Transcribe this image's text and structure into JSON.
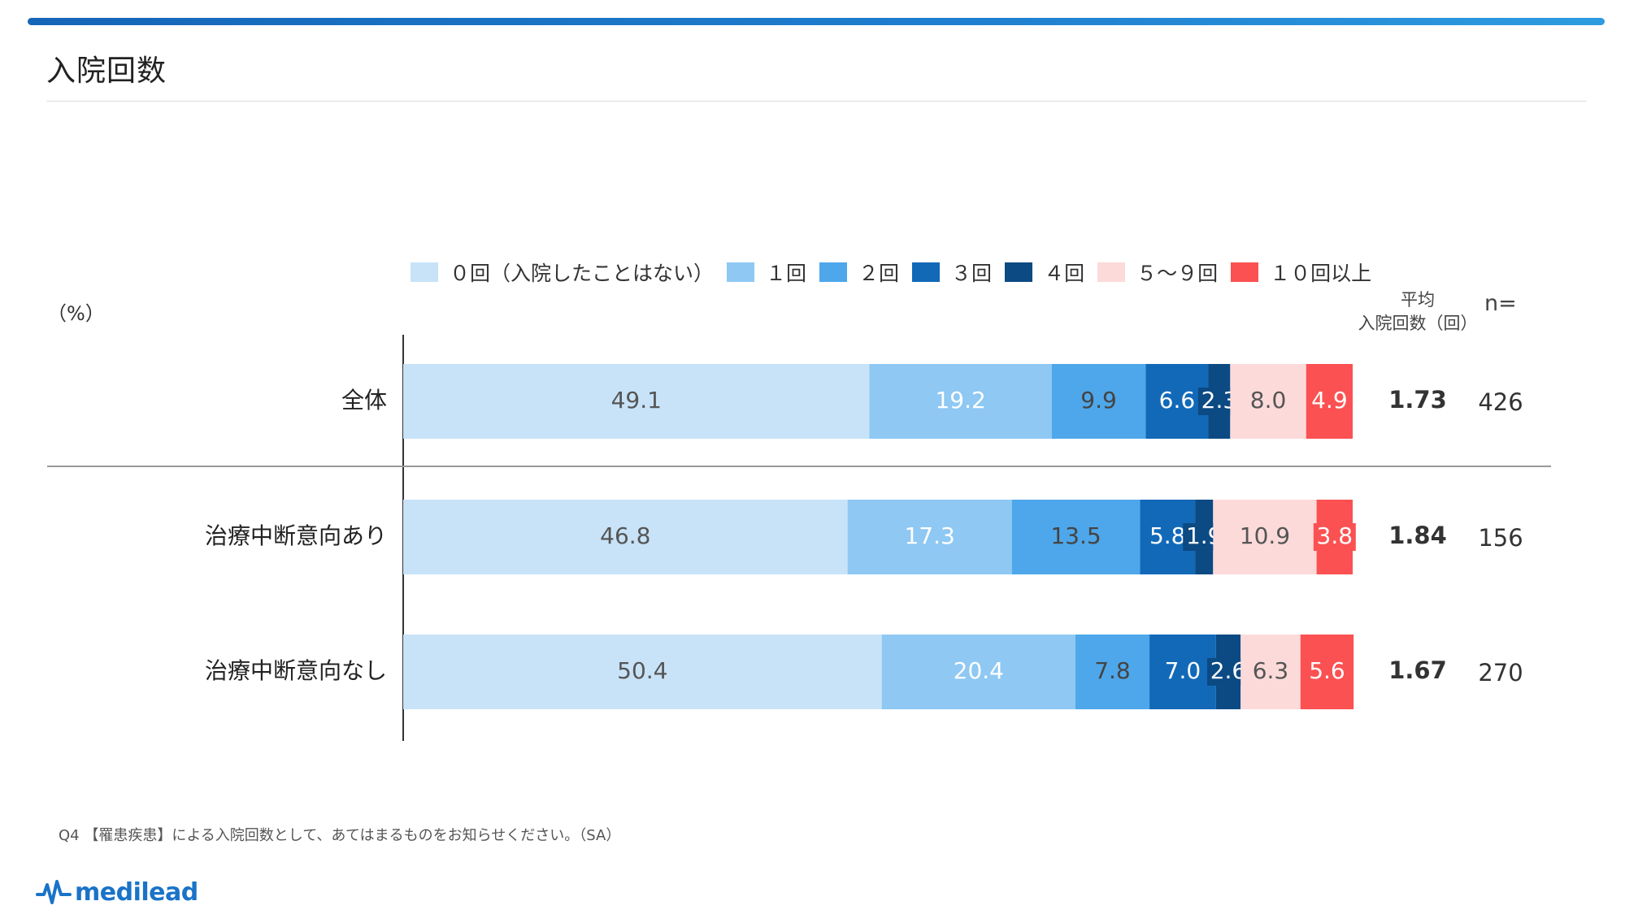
{
  "header": {
    "title": "入院回数"
  },
  "unit_label": "（%）",
  "avg_header": {
    "line1": "平均",
    "line2": "入院回数（回）"
  },
  "n_header": "n=",
  "footnote": "Q4 【罹患疾患】による入院回数として、あてはまるものをお知らせください。（SA）",
  "logo": {
    "text": "medilead",
    "icon": "pulse-line-icon"
  },
  "chart_data": {
    "type": "bar",
    "orientation": "horizontal",
    "stacked": true,
    "unit": "%",
    "categories": [
      "全体",
      "治療中断意向あり",
      "治療中断意向なし"
    ],
    "series": [
      {
        "name": "０回（入院したことはない）",
        "color": "#c8e3f8",
        "label_color": "#555555",
        "values": [
          49.1,
          46.8,
          50.4
        ]
      },
      {
        "name": "１回",
        "color": "#8ec8f3",
        "label_color": "#ffffff",
        "values": [
          19.2,
          17.3,
          20.4
        ]
      },
      {
        "name": "２回",
        "color": "#4ea7ea",
        "label_color": "#444444",
        "values": [
          9.9,
          13.5,
          7.8
        ]
      },
      {
        "name": "３回",
        "color": "#1269b8",
        "label_color": "#ffffff",
        "values": [
          6.6,
          5.8,
          7.0
        ]
      },
      {
        "name": "４回",
        "color": "#0c4a83",
        "label_color": "#ffffff",
        "values": [
          2.3,
          1.9,
          2.6
        ]
      },
      {
        "name": "５～９回",
        "color": "#fddada",
        "label_color": "#555555",
        "values": [
          8.0,
          10.9,
          6.3
        ]
      },
      {
        "name": "１０回以上",
        "color": "#fb5152",
        "label_color": "#ffffff",
        "values": [
          4.9,
          3.8,
          5.6
        ]
      }
    ],
    "averages": [
      "1.73",
      "1.84",
      "1.67"
    ],
    "n": [
      "426",
      "156",
      "270"
    ],
    "xlim": [
      0,
      100
    ],
    "legend_position": "top"
  }
}
